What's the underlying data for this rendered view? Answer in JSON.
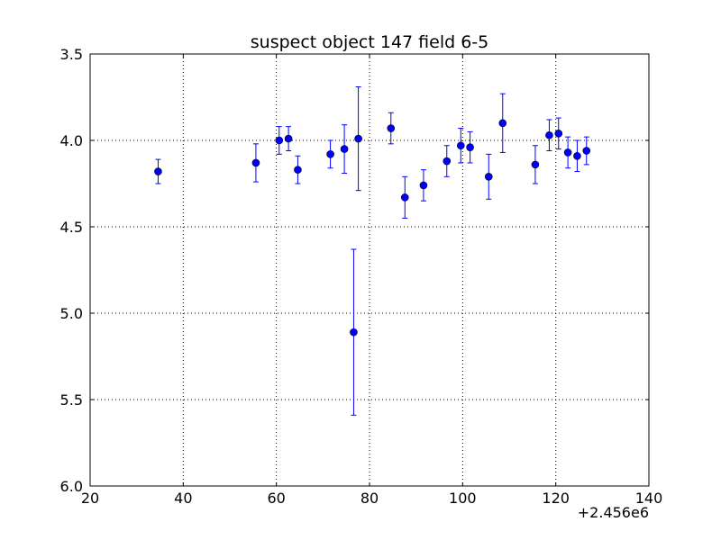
{
  "chart_data": {
    "type": "scatter",
    "title": "suspect object 147 field 6-5",
    "xlabel": "",
    "ylabel": "",
    "x_offset_label": "+2.456e6",
    "xlim": [
      20,
      140
    ],
    "ylim": [
      6.0,
      3.5
    ],
    "y_inverted": true,
    "grid": true,
    "xticks": [
      20,
      40,
      60,
      80,
      100,
      120,
      140
    ],
    "xtick_labels": [
      "20",
      "40",
      "60",
      "80",
      "100",
      "120",
      "140"
    ],
    "yticks": [
      3.5,
      4.0,
      4.5,
      5.0,
      5.5,
      6.0
    ],
    "ytick_labels": [
      "3.5",
      "4.0",
      "4.5",
      "5.0",
      "5.5",
      "6.0"
    ],
    "series": [
      {
        "color": "#0000ff",
        "marker": "circle",
        "points": [
          {
            "x": 34.6,
            "y": 4.18,
            "err": 0.07
          },
          {
            "x": 55.6,
            "y": 4.13,
            "err": 0.11
          },
          {
            "x": 60.6,
            "y": 4.0,
            "err": 0.08
          },
          {
            "x": 62.6,
            "y": 3.99,
            "err": 0.07
          },
          {
            "x": 64.6,
            "y": 4.17,
            "err": 0.08
          },
          {
            "x": 71.6,
            "y": 4.08,
            "err": 0.08
          },
          {
            "x": 74.6,
            "y": 4.05,
            "err": 0.14
          },
          {
            "x": 76.6,
            "y": 5.11,
            "err": 0.48
          },
          {
            "x": 77.6,
            "y": 3.99,
            "err": 0.3
          },
          {
            "x": 84.6,
            "y": 3.93,
            "err": 0.09
          },
          {
            "x": 87.6,
            "y": 4.33,
            "err": 0.12
          },
          {
            "x": 91.6,
            "y": 4.26,
            "err": 0.09
          },
          {
            "x": 96.6,
            "y": 4.12,
            "err": 0.09
          },
          {
            "x": 99.6,
            "y": 4.03,
            "err": 0.1
          },
          {
            "x": 101.6,
            "y": 4.04,
            "err": 0.09
          },
          {
            "x": 105.6,
            "y": 4.21,
            "err": 0.13
          },
          {
            "x": 108.6,
            "y": 3.9,
            "err": 0.17
          },
          {
            "x": 115.6,
            "y": 4.14,
            "err": 0.11
          },
          {
            "x": 118.6,
            "y": 3.97,
            "err": 0.09
          },
          {
            "x": 120.6,
            "y": 3.96,
            "err": 0.09
          },
          {
            "x": 122.6,
            "y": 4.07,
            "err": 0.09
          },
          {
            "x": 124.6,
            "y": 4.09,
            "err": 0.09
          },
          {
            "x": 126.6,
            "y": 4.06,
            "err": 0.08
          }
        ]
      }
    ]
  }
}
